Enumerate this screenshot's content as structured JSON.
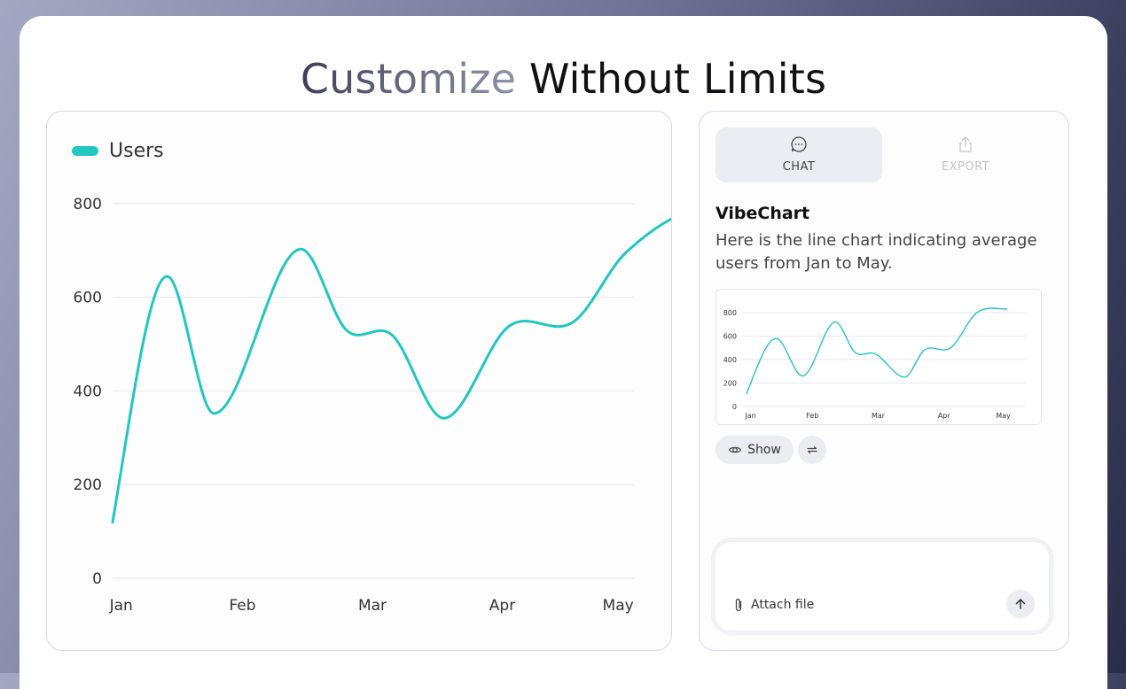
{
  "headline": {
    "part1": "Customize",
    "part2": "Without Limits"
  },
  "colors": {
    "series": "#22c7c0",
    "grid": "#e6e7ee"
  },
  "chart_data": [
    {
      "type": "line",
      "categories": [
        "Jan",
        "Feb",
        "Mar",
        "Apr",
        "May"
      ],
      "series": [
        {
          "name": "Users",
          "color": "#22c7c0",
          "x": [
            0,
            0.42,
            0.78,
            1.45,
            1.8,
            2.15,
            2.55,
            3.05,
            3.55,
            3.95,
            4.6
          ],
          "y": [
            120,
            645,
            352,
            703,
            530,
            520,
            342,
            538,
            548,
            695,
            790
          ]
        }
      ],
      "ylim": [
        0,
        800
      ],
      "yticks": [
        0,
        200,
        400,
        600,
        800
      ],
      "legend": "top-left",
      "grid": true
    },
    {
      "type": "line",
      "categories": [
        "Jan",
        "Feb",
        "Mar",
        "Apr",
        "May"
      ],
      "series": [
        {
          "color": "#22c7c0",
          "x": [
            0,
            0.45,
            0.85,
            1.35,
            1.65,
            1.95,
            2.4,
            2.7,
            3.1,
            3.5,
            3.95
          ],
          "y": [
            110,
            580,
            260,
            720,
            460,
            450,
            250,
            480,
            500,
            800,
            830
          ]
        }
      ],
      "ylim": [
        0,
        800
      ],
      "yticks": [
        0,
        200,
        400,
        600,
        800
      ],
      "grid": true
    }
  ],
  "chat": {
    "tabs": [
      {
        "label": "CHAT",
        "icon": "chat-bubble-icon"
      },
      {
        "label": "EXPORT",
        "icon": "share-icon"
      }
    ],
    "bot_name": "VibeChart",
    "message": "Here is the line chart indicating average users from Jan to May.",
    "show_label": "Show",
    "attach_label": "Attach file"
  }
}
